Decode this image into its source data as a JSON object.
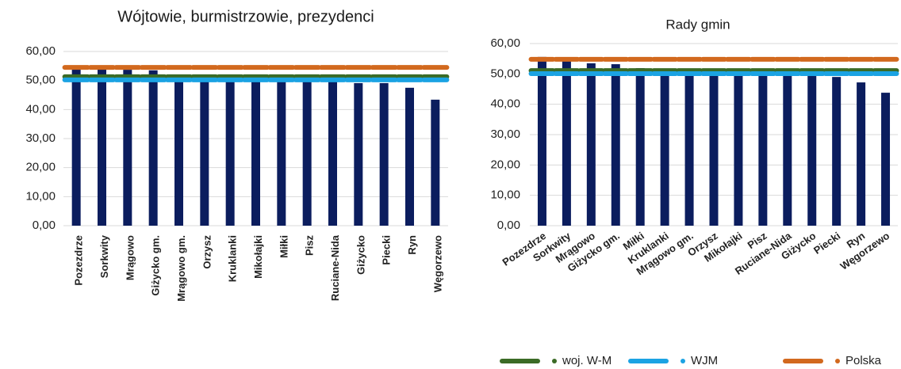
{
  "chart_data": [
    {
      "type": "bar",
      "title": "Wójtowie, burmistrzowie, prezydenci",
      "categories": [
        "Pozezdrze",
        "Sorkwity",
        "Mrągowo",
        "Giżycko gm.",
        "Mrągowo gm.",
        "Orzysz",
        "Kruklanki",
        "Mikołajki",
        "Miłki",
        "Pisz",
        "Ruciane-Nida",
        "Giżycko",
        "Piecki",
        "Ryn",
        "Węgorzewo"
      ],
      "values": [
        55.1,
        54.5,
        53.7,
        53.5,
        51.8,
        51.3,
        51.3,
        51.3,
        51.0,
        51.0,
        50.2,
        49.1,
        49.1,
        47.5,
        43.4
      ],
      "color": "#0b1d5e",
      "series": [
        {
          "name": "woj. W-M",
          "color": "#3b6b26",
          "values": [
            51.3,
            51.3,
            51.3,
            51.3,
            51.3,
            51.3,
            51.3,
            51.3,
            51.3,
            51.3,
            51.3,
            51.3,
            51.3,
            51.3,
            51.3
          ]
        },
        {
          "name": "WJM",
          "color": "#1ba3e3",
          "values": [
            50.2,
            50.2,
            50.2,
            50.2,
            50.2,
            50.2,
            50.2,
            50.2,
            50.2,
            50.2,
            50.2,
            50.2,
            50.2,
            50.2,
            50.2
          ]
        },
        {
          "name": "Polska",
          "color": "#d2691e",
          "values": [
            54.5,
            54.5,
            54.5,
            54.5,
            54.5,
            54.5,
            54.5,
            54.5,
            54.5,
            54.5,
            54.5,
            54.5,
            54.5,
            54.5,
            54.5
          ]
        }
      ],
      "ylim": [
        0,
        60
      ],
      "yticks": [
        {
          "value": 0,
          "label": "0,00"
        },
        {
          "value": 10,
          "label": "10,00"
        },
        {
          "value": 20,
          "label": "20,00"
        },
        {
          "value": 30,
          "label": "30,00"
        },
        {
          "value": 40,
          "label": "40,00"
        },
        {
          "value": 50,
          "label": "50,00"
        },
        {
          "value": 60,
          "label": "60,00"
        }
      ],
      "grid": true,
      "label_rotation": -90
    },
    {
      "type": "bar",
      "title": "Rady gmin",
      "categories": [
        "Pozezdrze",
        "Sorkwity",
        "Mrągowo",
        "Giżycko gm.",
        "Miłki",
        "Kruklanki",
        "Mrągowo gm.",
        "Orzysz",
        "Mikołajki",
        "Pisz",
        "Ruciane-Nida",
        "Giżycko",
        "Piecki",
        "Ryn",
        "Węgorzewo"
      ],
      "values": [
        55.6,
        54.8,
        53.5,
        53.2,
        51.9,
        51.7,
        51.4,
        51.1,
        50.9,
        50.6,
        49.3,
        49.3,
        49.0,
        47.2,
        43.8
      ],
      "color": "#0b1d5e",
      "series": [
        {
          "name": "woj. W-M",
          "color": "#3b6b26",
          "values": [
            51.1,
            51.1,
            51.1,
            51.1,
            51.1,
            51.1,
            51.1,
            51.1,
            51.1,
            51.1,
            51.1,
            51.1,
            51.1,
            51.1,
            51.1
          ]
        },
        {
          "name": "WJM",
          "color": "#1ba3e3",
          "values": [
            50.1,
            50.1,
            50.1,
            50.1,
            50.1,
            50.1,
            50.1,
            50.1,
            50.1,
            50.1,
            50.1,
            50.1,
            50.1,
            50.1,
            50.1
          ]
        },
        {
          "name": "Polska",
          "color": "#d2691e",
          "values": [
            54.8,
            54.8,
            54.8,
            54.8,
            54.8,
            54.8,
            54.8,
            54.8,
            54.8,
            54.8,
            54.8,
            54.8,
            54.8,
            54.8,
            54.8
          ]
        }
      ],
      "ylim": [
        0,
        60
      ],
      "yticks": [
        {
          "value": 0,
          "label": "0,00"
        },
        {
          "value": 10,
          "label": "10,00"
        },
        {
          "value": 20,
          "label": "20,00"
        },
        {
          "value": 30,
          "label": "30,00"
        },
        {
          "value": 40,
          "label": "40,00"
        },
        {
          "value": 50,
          "label": "50,00"
        },
        {
          "value": 60,
          "label": "60,00"
        }
      ],
      "grid": true,
      "label_rotation": -35,
      "legend": "bottom-right"
    }
  ]
}
